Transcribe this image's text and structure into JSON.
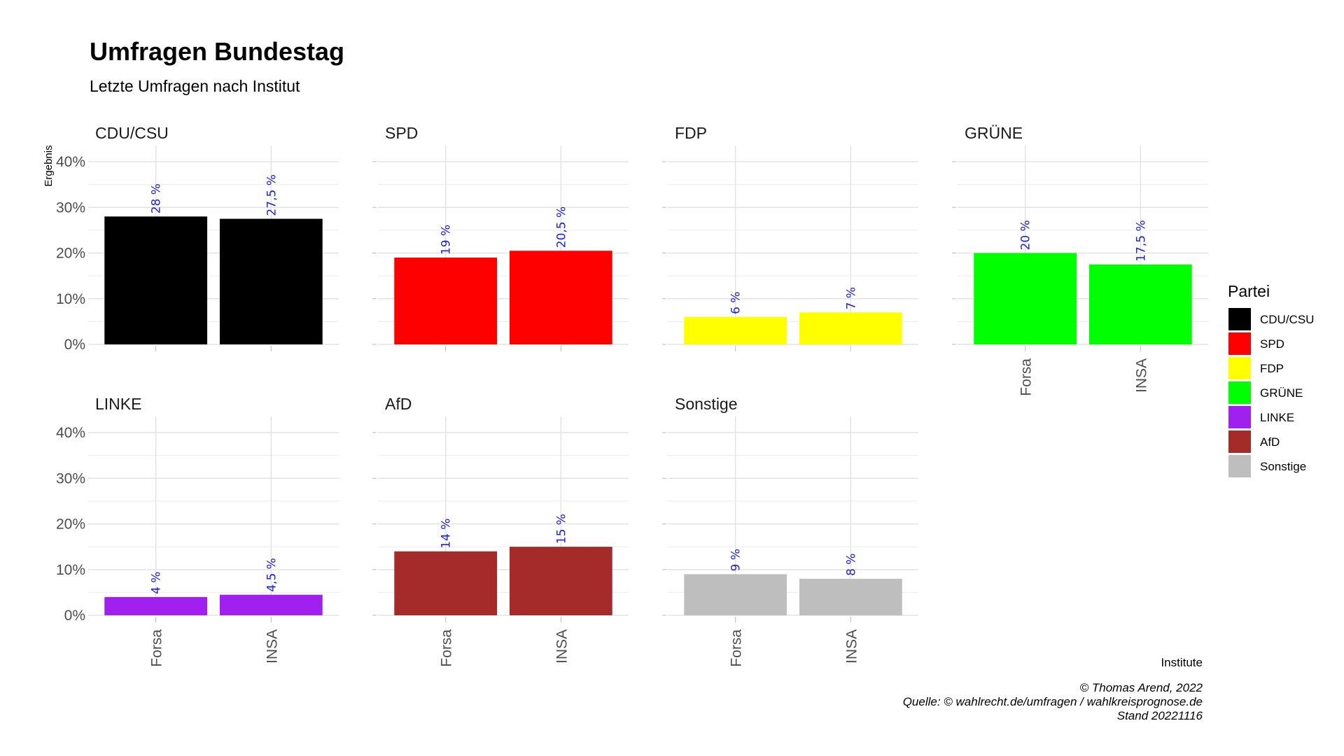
{
  "chart_data": {
    "type": "bar",
    "title": "Umfragen Bundestag",
    "subtitle": "Letzte Umfragen nach Institut",
    "xlabel": "Institute",
    "ylabel": "Ergebnis",
    "ylim": [
      0,
      40
    ],
    "y_ticks": [
      "0%",
      "10%",
      "20%",
      "30%",
      "40%"
    ],
    "categories": [
      "Forsa",
      "INSA"
    ],
    "legend_title": "Partei",
    "legend_position": "right",
    "grid": true,
    "facets": [
      {
        "name": "CDU/CSU",
        "color": "#000000",
        "values": [
          28,
          27.5
        ],
        "labels": [
          "28 %",
          "27,5 %"
        ]
      },
      {
        "name": "SPD",
        "color": "#ff0000",
        "values": [
          19,
          20.5
        ],
        "labels": [
          "19 %",
          "20,5 %"
        ]
      },
      {
        "name": "FDP",
        "color": "#ffff00",
        "values": [
          6,
          7
        ],
        "labels": [
          "6 %",
          "7 %"
        ]
      },
      {
        "name": "GRÜNE",
        "color": "#00ff00",
        "values": [
          20,
          17.5
        ],
        "labels": [
          "20 %",
          "17,5 %"
        ]
      },
      {
        "name": "LINKE",
        "color": "#a020f0",
        "values": [
          4,
          4.5
        ],
        "labels": [
          "4 %",
          "4,5 %"
        ]
      },
      {
        "name": "AfD",
        "color": "#a52a2a",
        "values": [
          14,
          15
        ],
        "labels": [
          "14 %",
          "15 %"
        ]
      },
      {
        "name": "Sonstige",
        "color": "#bebebe",
        "values": [
          9,
          8
        ],
        "labels": [
          "9 %",
          "8 %"
        ]
      }
    ],
    "caption": [
      "© Thomas Arend, 2022",
      "Quelle: © wahlrecht.de/umfragen / wahlkreisprognose.de",
      "Stand 20221116"
    ]
  }
}
